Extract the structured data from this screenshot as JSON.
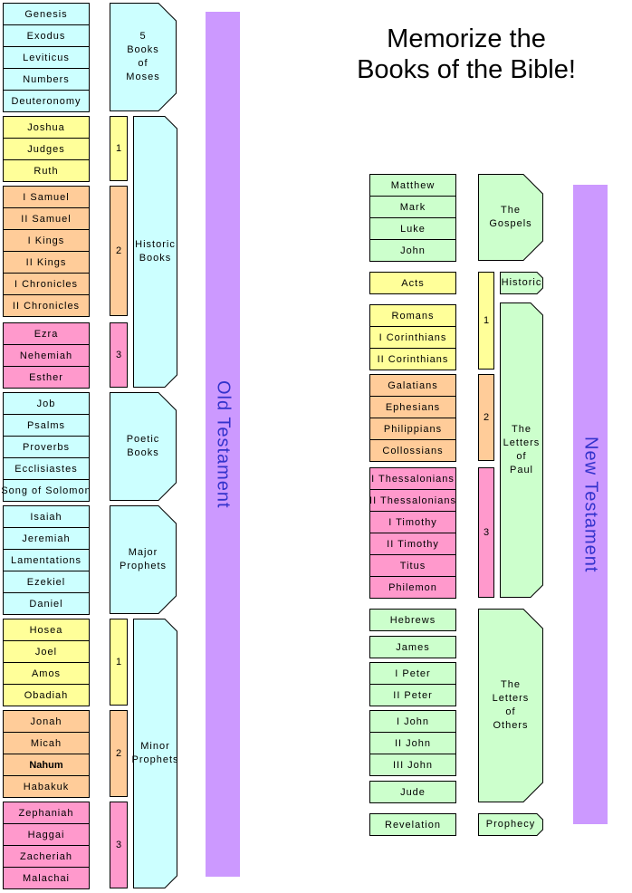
{
  "title": {
    "line1": "Memorize the",
    "line2": "Books of the Bible!"
  },
  "colors": {
    "cyan": "#CCFFFF",
    "yellow": "#FFFF99",
    "orange": "#FFCC99",
    "pink": "#FF99CC",
    "green": "#CCFFCC",
    "purple": "#CC99FF",
    "bar_text": "#3333CC",
    "border": "#000000"
  },
  "old_testament": {
    "bar_label": "Old Testament",
    "book_groups": [
      {
        "id": "moses",
        "color": "cyan",
        "books": [
          "Genesis",
          "Exodus",
          "Leviticus",
          "Numbers",
          "Deuteronomy"
        ]
      },
      {
        "id": "historic-1",
        "color": "yellow",
        "number": "1",
        "books": [
          "Joshua",
          "Judges",
          "Ruth"
        ]
      },
      {
        "id": "historic-2",
        "color": "orange",
        "number": "2",
        "books": [
          "I Samuel",
          "II Samuel",
          "I Kings",
          "II Kings",
          "I Chronicles",
          "II Chronicles"
        ]
      },
      {
        "id": "historic-3",
        "color": "pink",
        "number": "3",
        "books": [
          "Ezra",
          "Nehemiah",
          "Esther"
        ]
      },
      {
        "id": "poetic",
        "color": "cyan",
        "books": [
          "Job",
          "Psalms",
          "Proverbs",
          "Ecclisiastes",
          "Song of Solomon"
        ]
      },
      {
        "id": "major",
        "color": "cyan",
        "books": [
          "Isaiah",
          "Jeremiah",
          "Lamentations",
          "Ezekiel",
          "Daniel"
        ]
      },
      {
        "id": "minor-1",
        "color": "yellow",
        "number": "1",
        "books": [
          "Hosea",
          "Joel",
          "Amos",
          "Obadiah"
        ]
      },
      {
        "id": "minor-2",
        "color": "orange",
        "number": "2",
        "books": [
          "Jonah",
          "Micah",
          "Nahum",
          "Habakuk"
        ]
      },
      {
        "id": "minor-3",
        "color": "pink",
        "number": "3",
        "books": [
          "Zephaniah",
          "Haggai",
          "Zacheriah",
          "Malachai"
        ]
      }
    ],
    "categories": [
      {
        "id": "moses",
        "lines": [
          "5",
          "Books",
          "of",
          "Moses"
        ]
      },
      {
        "id": "historic",
        "lines": [
          "Historic",
          "Books"
        ]
      },
      {
        "id": "poetic",
        "lines": [
          "Poetic",
          "Books"
        ]
      },
      {
        "id": "major",
        "lines": [
          "Major",
          "Prophets"
        ]
      },
      {
        "id": "minor",
        "lines": [
          "Minor",
          "Prophets"
        ]
      }
    ]
  },
  "new_testament": {
    "bar_label": "New Testament",
    "book_groups": [
      {
        "id": "gospels",
        "color": "green",
        "books": [
          "Matthew",
          "Mark",
          "Luke",
          "John"
        ]
      },
      {
        "id": "historic-1",
        "color": "yellow",
        "books": [
          "Acts"
        ]
      },
      {
        "id": "paul-1",
        "color": "yellow",
        "number": "1",
        "books": [
          "Romans",
          "I Corinthians",
          "II Corinthians"
        ]
      },
      {
        "id": "paul-2",
        "color": "orange",
        "number": "2",
        "books": [
          "Galatians",
          "Ephesians",
          "Philippians",
          "Collossians"
        ]
      },
      {
        "id": "paul-3",
        "color": "pink",
        "number": "3",
        "books": [
          "I Thessalonians",
          "II Thessalonians",
          "I Timothy",
          "II Timothy",
          "Titus",
          "Philemon"
        ]
      },
      {
        "id": "others-1",
        "color": "green",
        "books": [
          "Hebrews"
        ]
      },
      {
        "id": "others-2",
        "color": "green",
        "books": [
          "James"
        ]
      },
      {
        "id": "others-3",
        "color": "green",
        "books": [
          "I Peter",
          "II Peter"
        ]
      },
      {
        "id": "others-4",
        "color": "green",
        "books": [
          "I John",
          "II John",
          "III John"
        ]
      },
      {
        "id": "others-5",
        "color": "green",
        "books": [
          "Jude"
        ]
      },
      {
        "id": "prophecy",
        "color": "green",
        "books": [
          "Revelation"
        ]
      }
    ],
    "categories": [
      {
        "id": "gospels",
        "lines": [
          "The",
          "Gospels"
        ]
      },
      {
        "id": "historic",
        "lines": [
          "Historic"
        ]
      },
      {
        "id": "paul",
        "lines": [
          "The",
          "Letters",
          "of",
          "Paul"
        ]
      },
      {
        "id": "others",
        "lines": [
          "The",
          "Letters",
          "of",
          "Others"
        ]
      },
      {
        "id": "prophecy",
        "lines": [
          "Prophecy"
        ]
      }
    ]
  }
}
